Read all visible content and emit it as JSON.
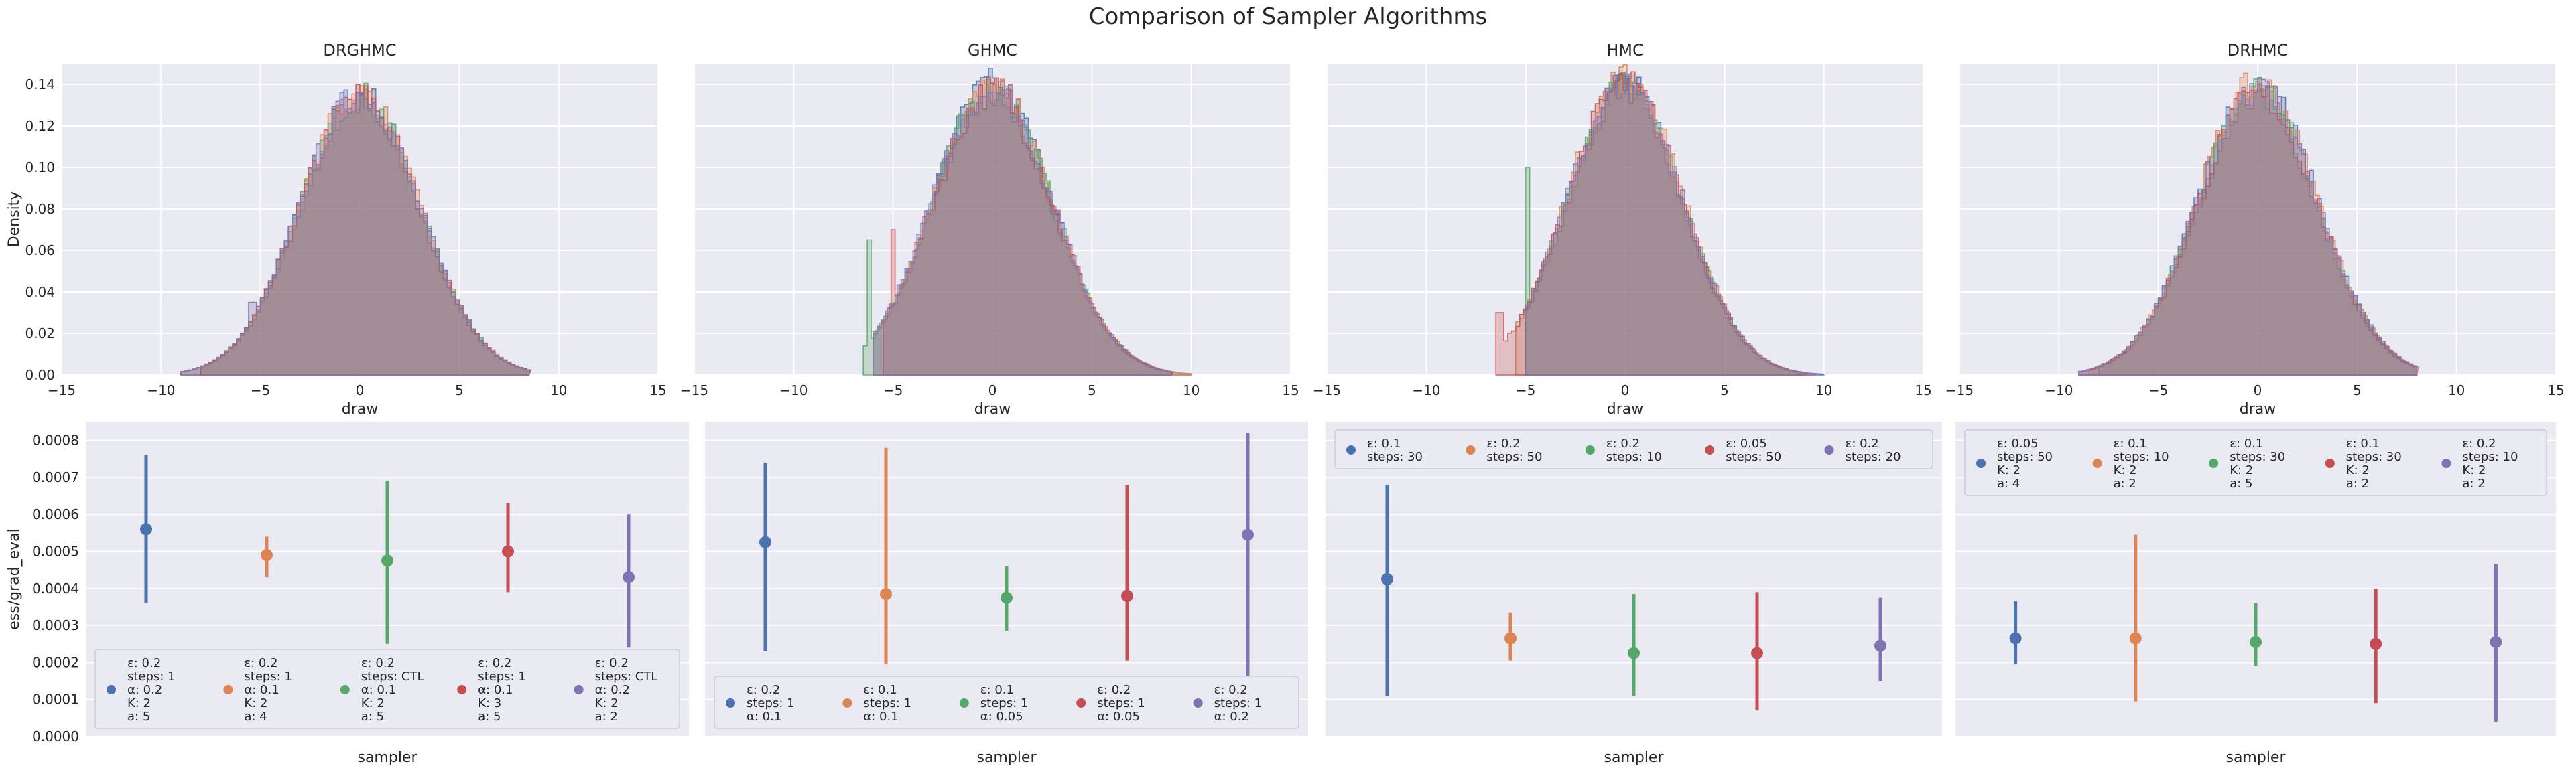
{
  "figure": {
    "title": "Comparison of Sampler Algorithms",
    "background": "#ffffff",
    "panel_background": "#eaeaf2",
    "grid_color": "#ffffff",
    "palette": [
      "#4c72b0",
      "#dd8452",
      "#55a868",
      "#c44e52",
      "#8172b3",
      "#937860"
    ]
  },
  "chart_data": [
    {
      "type": "histogram",
      "title": "DRGHMC",
      "xlabel": "draw",
      "ylabel": "Density",
      "xlim": [
        -15,
        15
      ],
      "ylim": [
        0,
        0.15
      ],
      "xticks": [
        "−15",
        "−10",
        "−5",
        "0",
        "5",
        "10",
        "15"
      ],
      "yticks": [
        "0.00",
        "0.02",
        "0.04",
        "0.06",
        "0.08",
        "0.10",
        "0.12",
        "0.14"
      ],
      "grid": true,
      "series": [
        {
          "support": [
            -9,
            8.5
          ],
          "peak_x": 0,
          "peak_density": 0.135,
          "sd": 3.0
        },
        {
          "support": [
            -9,
            8.5
          ],
          "peak_x": 0,
          "peak_density": 0.135,
          "sd": 3.0
        },
        {
          "support": [
            -8,
            8.5
          ],
          "peak_x": 0,
          "peak_density": 0.134,
          "sd": 3.0
        },
        {
          "support": [
            -8,
            8.5
          ],
          "peak_x": 0,
          "peak_density": 0.134,
          "sd": 3.0
        },
        {
          "support": [
            -9,
            8.5
          ],
          "peak_x": 0,
          "peak_density": 0.135,
          "sd": 3.0,
          "spike": {
            "x": -5.5,
            "density": 0.035
          }
        }
      ]
    },
    {
      "type": "histogram",
      "title": "GHMC",
      "xlabel": "draw",
      "xlim": [
        -15,
        15
      ],
      "ylim": [
        0,
        0.15
      ],
      "xticks": [
        "−15",
        "−10",
        "−5",
        "0",
        "5",
        "10",
        "15"
      ],
      "grid": true,
      "series": [
        {
          "support": [
            -6,
            10
          ],
          "peak_x": 0,
          "peak_density": 0.14,
          "sd": 3.0
        },
        {
          "support": [
            -6,
            10
          ],
          "peak_x": 0,
          "peak_density": 0.138,
          "sd": 3.0
        },
        {
          "support": [
            -6.5,
            9
          ],
          "peak_x": 0,
          "peak_density": 0.137,
          "sd": 3.0,
          "spike": {
            "x": -6.2,
            "density": 0.065
          }
        },
        {
          "support": [
            -5.5,
            9
          ],
          "peak_x": 0,
          "peak_density": 0.137,
          "sd": 3.0,
          "spike": {
            "x": -5.0,
            "density": 0.07
          }
        },
        {
          "support": [
            -6,
            9
          ],
          "peak_x": 0,
          "peak_density": 0.138,
          "sd": 3.0
        }
      ]
    },
    {
      "type": "histogram",
      "title": "HMC",
      "xlabel": "draw",
      "xlim": [
        -15,
        15
      ],
      "ylim": [
        0,
        0.15
      ],
      "xticks": [
        "−15",
        "−10",
        "−5",
        "0",
        "5",
        "10",
        "15"
      ],
      "grid": true,
      "series": [
        {
          "support": [
            -5,
            10
          ],
          "peak_x": 0,
          "peak_density": 0.14,
          "sd": 2.9
        },
        {
          "support": [
            -5.5,
            9.5
          ],
          "peak_x": 0,
          "peak_density": 0.143,
          "sd": 2.9
        },
        {
          "support": [
            -5,
            9
          ],
          "peak_x": 0,
          "peak_density": 0.138,
          "sd": 2.9,
          "spike": {
            "x": -5,
            "density": 0.1
          }
        },
        {
          "support": [
            -6.5,
            9
          ],
          "peak_x": 0,
          "peak_density": 0.14,
          "sd": 2.9,
          "spike": {
            "x": -6.3,
            "density": 0.03
          }
        },
        {
          "support": [
            -5,
            9.5
          ],
          "peak_x": 0,
          "peak_density": 0.14,
          "sd": 2.9
        }
      ]
    },
    {
      "type": "histogram",
      "title": "DRHMC",
      "xlabel": "draw",
      "xlim": [
        -15,
        15
      ],
      "ylim": [
        0,
        0.15
      ],
      "xticks": [
        "−15",
        "−10",
        "−5",
        "0",
        "5",
        "10",
        "15"
      ],
      "grid": true,
      "series": [
        {
          "support": [
            -9,
            8
          ],
          "peak_x": 0,
          "peak_density": 0.14,
          "sd": 3.0
        },
        {
          "support": [
            -8.5,
            8
          ],
          "peak_x": 0,
          "peak_density": 0.14,
          "sd": 3.0
        },
        {
          "support": [
            -8,
            8
          ],
          "peak_x": 0,
          "peak_density": 0.135,
          "sd": 3.0
        },
        {
          "support": [
            -9,
            8
          ],
          "peak_x": 0,
          "peak_density": 0.135,
          "sd": 3.0
        },
        {
          "support": [
            -9,
            8
          ],
          "peak_x": 0,
          "peak_density": 0.138,
          "sd": 3.0
        }
      ]
    },
    {
      "type": "pointplot",
      "xlabel": "sampler",
      "ylabel": "ess/grad_eval",
      "ylim": [
        0,
        0.00085
      ],
      "yticks": [
        "0.0000",
        "0.0001",
        "0.0002",
        "0.0003",
        "0.0004",
        "0.0005",
        "0.0006",
        "0.0007",
        "0.0008"
      ],
      "grid": true,
      "legend": "lower-left",
      "points": [
        {
          "x": 0,
          "y": 0.00056,
          "lo": 0.00036,
          "hi": 0.00076,
          "label": [
            "ε: 0.2",
            "steps: 1",
            "α: 0.2",
            "K: 2",
            "a: 5"
          ]
        },
        {
          "x": 1,
          "y": 0.00049,
          "lo": 0.00043,
          "hi": 0.00054,
          "label": [
            "ε: 0.2",
            "steps: 1",
            "α: 0.1",
            "K: 2",
            "a: 4"
          ]
        },
        {
          "x": 2,
          "y": 0.000475,
          "lo": 0.00025,
          "hi": 0.00069,
          "label": [
            "ε: 0.2",
            "steps: CTL",
            "α: 0.1",
            "K: 2",
            "a: 5"
          ]
        },
        {
          "x": 3,
          "y": 0.0005,
          "lo": 0.00039,
          "hi": 0.00063,
          "label": [
            "ε: 0.2",
            "steps: 1",
            "α: 0.1",
            "K: 3",
            "a: 5"
          ]
        },
        {
          "x": 4,
          "y": 0.00043,
          "lo": 0.00024,
          "hi": 0.0006,
          "label": [
            "ε: 0.2",
            "steps: CTL",
            "α: 0.2",
            "K: 2",
            "a: 2"
          ]
        }
      ]
    },
    {
      "type": "pointplot",
      "xlabel": "sampler",
      "ylim": [
        0,
        0.00085
      ],
      "grid": true,
      "legend": "lower-left",
      "points": [
        {
          "x": 0,
          "y": 0.000525,
          "lo": 0.00023,
          "hi": 0.00074,
          "label": [
            "ε: 0.2",
            "steps: 1",
            "α: 0.1"
          ]
        },
        {
          "x": 1,
          "y": 0.000385,
          "lo": 0.000195,
          "hi": 0.00078,
          "label": [
            "ε: 0.1",
            "steps: 1",
            "α: 0.1"
          ]
        },
        {
          "x": 2,
          "y": 0.000375,
          "lo": 0.000285,
          "hi": 0.00046,
          "label": [
            "ε: 0.1",
            "steps: 1",
            "α: 0.05"
          ]
        },
        {
          "x": 3,
          "y": 0.00038,
          "lo": 0.000205,
          "hi": 0.00068,
          "label": [
            "ε: 0.2",
            "steps: 1",
            "α: 0.05"
          ]
        },
        {
          "x": 4,
          "y": 0.000545,
          "lo": 0.000135,
          "hi": 0.00082,
          "label": [
            "ε: 0.2",
            "steps: 1",
            "α: 0.2"
          ]
        }
      ]
    },
    {
      "type": "pointplot",
      "xlabel": "sampler",
      "ylim": [
        0,
        0.00085
      ],
      "grid": true,
      "legend": "top",
      "points": [
        {
          "x": 0,
          "y": 0.000425,
          "lo": 0.00011,
          "hi": 0.00068,
          "label": [
            "ε: 0.1",
            "steps: 30"
          ]
        },
        {
          "x": 1,
          "y": 0.000265,
          "lo": 0.000205,
          "hi": 0.000335,
          "label": [
            "ε: 0.2",
            "steps: 50"
          ]
        },
        {
          "x": 2,
          "y": 0.000225,
          "lo": 0.00011,
          "hi": 0.000385,
          "label": [
            "ε: 0.2",
            "steps: 10"
          ]
        },
        {
          "x": 3,
          "y": 0.000225,
          "lo": 7e-05,
          "hi": 0.00039,
          "label": [
            "ε: 0.05",
            "steps: 50"
          ]
        },
        {
          "x": 4,
          "y": 0.000245,
          "lo": 0.00015,
          "hi": 0.000375,
          "label": [
            "ε: 0.2",
            "steps: 20"
          ]
        }
      ]
    },
    {
      "type": "pointplot",
      "xlabel": "sampler",
      "ylim": [
        0,
        0.00085
      ],
      "grid": true,
      "legend": "top",
      "points": [
        {
          "x": 0,
          "y": 0.000265,
          "lo": 0.000195,
          "hi": 0.000365,
          "label": [
            "ε: 0.05",
            "steps: 50",
            "K: 2",
            "a: 4"
          ]
        },
        {
          "x": 1,
          "y": 0.000265,
          "lo": 9.5e-05,
          "hi": 0.000545,
          "label": [
            "ε: 0.1",
            "steps: 10",
            "K: 2",
            "a: 2"
          ]
        },
        {
          "x": 2,
          "y": 0.000255,
          "lo": 0.00019,
          "hi": 0.00036,
          "label": [
            "ε: 0.1",
            "steps: 30",
            "K: 2",
            "a: 5"
          ]
        },
        {
          "x": 3,
          "y": 0.00025,
          "lo": 9e-05,
          "hi": 0.0004,
          "label": [
            "ε: 0.1",
            "steps: 30",
            "K: 2",
            "a: 2"
          ]
        },
        {
          "x": 4,
          "y": 0.000255,
          "lo": 4e-05,
          "hi": 0.000465,
          "label": [
            "ε: 0.2",
            "steps: 10",
            "K: 2",
            "a: 2"
          ]
        }
      ]
    }
  ]
}
